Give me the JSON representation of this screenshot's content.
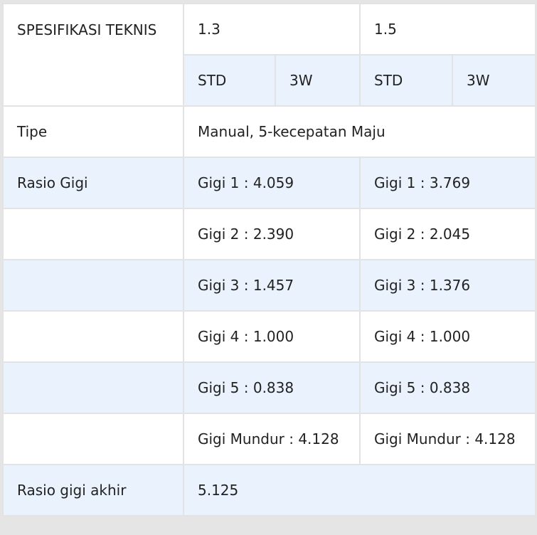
{
  "table": {
    "header": {
      "spec_label": "SPESIFIKASI TEKNIS",
      "variant_a": "1.3",
      "variant_b": "1.5",
      "sub": [
        "STD",
        "3W",
        "STD",
        "3W"
      ]
    },
    "tipe": {
      "label": "Tipe",
      "value": "Manual, 5-kecepatan Maju"
    },
    "rasio_gigi": {
      "label": "Rasio Gigi",
      "rows": [
        {
          "a": "Gigi 1 : 4.059",
          "b": "Gigi 1 : 3.769"
        },
        {
          "a": "Gigi 2 : 2.390",
          "b": "Gigi 2 : 2.045"
        },
        {
          "a": "Gigi 3 : 1.457",
          "b": "Gigi 3 : 1.376"
        },
        {
          "a": "Gigi 4 : 1.000",
          "b": "Gigi 4 : 1.000"
        },
        {
          "a": "Gigi 5 : 0.838",
          "b": "Gigi 5 : 0.838"
        },
        {
          "a": "Gigi Mundur : 4.128",
          "b": "Gigi Mundur : 4.128"
        }
      ]
    },
    "rasio_akhir": {
      "label": "Rasio gigi akhir",
      "value": "5.125"
    }
  }
}
